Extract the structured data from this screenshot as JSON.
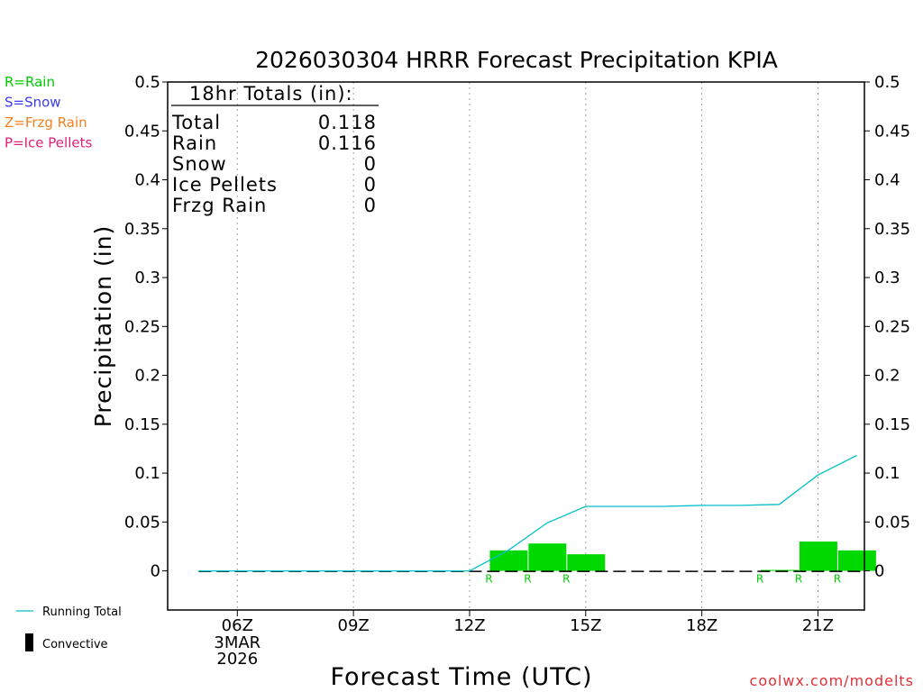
{
  "chart_data": {
    "type": "bar",
    "title": "2026030304 HRRR Forecast Precipitation KPIA",
    "xlabel": "Forecast Time (UTC)",
    "ylabel": "Precipitation (in)",
    "ylim": [
      -0.04,
      0.5
    ],
    "yticks": [
      "0",
      "0.05",
      "0.1",
      "0.15",
      "0.2",
      "0.25",
      "0.3",
      "0.35",
      "0.4",
      "0.45",
      "0.5"
    ],
    "xlim": [
      4.2,
      22.2
    ],
    "xticks": [
      {
        "hour": 6,
        "label": "06Z"
      },
      {
        "hour": 9,
        "label": "09Z"
      },
      {
        "hour": 12,
        "label": "12Z"
      },
      {
        "hour": 15,
        "label": "15Z"
      },
      {
        "hour": 18,
        "label": "18Z"
      },
      {
        "hour": 21,
        "label": "21Z"
      }
    ],
    "date_label": {
      "hour": 6,
      "lines": [
        "3MAR",
        "2026"
      ]
    },
    "hourly_rain": [
      {
        "hour": 5,
        "value": 0
      },
      {
        "hour": 6,
        "value": 0
      },
      {
        "hour": 7,
        "value": 0
      },
      {
        "hour": 8,
        "value": 0
      },
      {
        "hour": 9,
        "value": 0
      },
      {
        "hour": 10,
        "value": 0
      },
      {
        "hour": 11,
        "value": 0
      },
      {
        "hour": 12,
        "value": 0
      },
      {
        "hour": 13,
        "value": 0.021,
        "type": "R"
      },
      {
        "hour": 14,
        "value": 0.028,
        "type": "R"
      },
      {
        "hour": 15,
        "value": 0.017,
        "type": "R"
      },
      {
        "hour": 16,
        "value": 0
      },
      {
        "hour": 17,
        "value": 0
      },
      {
        "hour": 18,
        "value": 0
      },
      {
        "hour": 19,
        "value": 0
      },
      {
        "hour": 20,
        "value": 0.001,
        "type": "R"
      },
      {
        "hour": 21,
        "value": 0.03,
        "type": "R"
      },
      {
        "hour": 22,
        "value": 0.021,
        "type": "R"
      }
    ],
    "running_total": [
      {
        "hour": 5,
        "value": 0
      },
      {
        "hour": 12,
        "value": 0
      },
      {
        "hour": 13,
        "value": 0.021
      },
      {
        "hour": 14,
        "value": 0.049
      },
      {
        "hour": 15,
        "value": 0.066
      },
      {
        "hour": 16,
        "value": 0.066
      },
      {
        "hour": 17,
        "value": 0.066
      },
      {
        "hour": 18,
        "value": 0.067
      },
      {
        "hour": 19,
        "value": 0.067
      },
      {
        "hour": 20,
        "value": 0.068
      },
      {
        "hour": 21,
        "value": 0.098
      },
      {
        "hour": 22,
        "value": 0.118
      }
    ],
    "colors": {
      "bar": "#00d800",
      "running_total": "#00c0c8",
      "rain_label": "#00cc00",
      "snow_label": "#3b3bf0",
      "frzg_label": "#f08020",
      "ice_label": "#e0207a",
      "grid": "#a0a0a0"
    }
  },
  "totals_box": {
    "heading": "18hr Totals (in):",
    "rows": [
      {
        "label": "Total",
        "value": "0.118"
      },
      {
        "label": "Rain",
        "value": "0.116"
      },
      {
        "label": "Snow",
        "value": "0"
      },
      {
        "label": "Ice Pellets",
        "value": "0"
      },
      {
        "label": "Frzg Rain",
        "value": "0"
      }
    ]
  },
  "type_legend": [
    {
      "text": "R=Rain",
      "color": "#00cc00"
    },
    {
      "text": "S=Snow",
      "color": "#3b3bf0"
    },
    {
      "text": "Z=Frzg Rain",
      "color": "#f08020"
    },
    {
      "text": "P=Ice Pellets",
      "color": "#e0207a"
    }
  ],
  "line_legend": {
    "running_total": "Running Total",
    "convective": "Convective"
  },
  "credit": "coolwx.com/modelts"
}
